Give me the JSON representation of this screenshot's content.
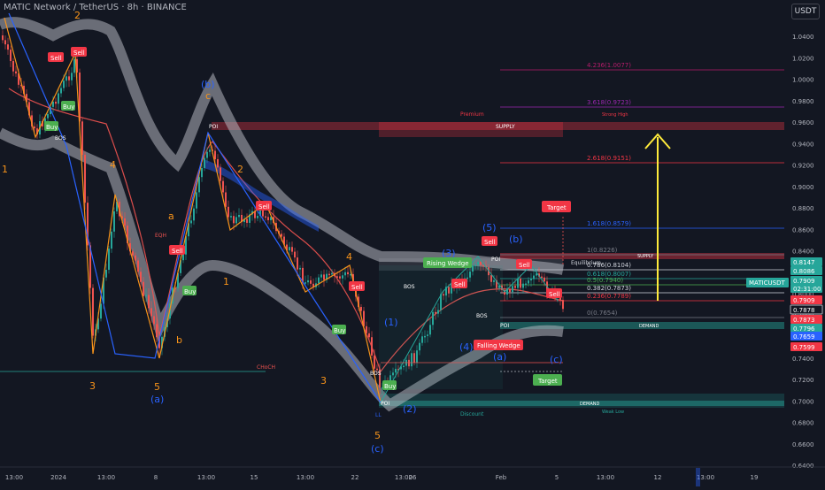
{
  "header": {
    "title": "MATIC Network / TetherUS · 8h · BINANCE",
    "currency_button": "USDT"
  },
  "price_axis": {
    "ticks": [
      "1.0400",
      "1.0200",
      "1.0000",
      "0.9800",
      "0.9600",
      "0.9400",
      "0.9200",
      "0.9000",
      "0.8800",
      "0.8600",
      "0.8400",
      "0.8200",
      "0.8000",
      "0.7800",
      "0.7600",
      "0.7400",
      "0.7200",
      "0.7000",
      "0.6800",
      "0.6600",
      "0.6400"
    ],
    "badges": [
      {
        "label": "0.8147",
        "color": "#26a69a"
      },
      {
        "label": "0.8086",
        "color": "#26a69a"
      },
      {
        "label": "0.7909",
        "color": "#26a69a"
      },
      {
        "label": "02:31:00",
        "color": "#26a69a"
      },
      {
        "label": "0.7909",
        "color": "#f23645"
      },
      {
        "label": "0.7878",
        "color": "#131722"
      },
      {
        "label": "0.7873",
        "color": "#f23645"
      },
      {
        "label": "0.7796",
        "color": "#26a69a"
      },
      {
        "label": "0.7659",
        "color": "#2962ff"
      },
      {
        "label": "0.7599",
        "color": "#f23645"
      }
    ],
    "symbol_label": "MATICUSDT"
  },
  "time_axis": [
    "13:00",
    "2024",
    "13:00",
    "8",
    "13:00",
    "15",
    "13:00",
    "22",
    "13:00",
    "26",
    "Feb",
    "5",
    "13:00",
    "12",
    "13:00",
    "19"
  ],
  "fib_levels": [
    {
      "label": "4.236(1.0077)",
      "color": "#b71c6b"
    },
    {
      "label": "3.618(0.9723)",
      "color": "#9c27b0"
    },
    {
      "label": "2.618(0.9151)",
      "color": "#f23645"
    },
    {
      "label": "1.618(0.8579)",
      "color": "#2962ff"
    },
    {
      "label": "1(0.8226)",
      "color": "#787b86"
    },
    {
      "label": "0.786(0.8104)",
      "color": "#d1d4dc"
    },
    {
      "label": "0.618(0.8007)",
      "color": "#26a69a"
    },
    {
      "label": "0.5(0.7940)",
      "color": "#4caf50"
    },
    {
      "label": "0.382(0.7873)",
      "color": "#d1d4dc"
    },
    {
      "label": "0.236(0.7789)",
      "color": "#f23645"
    },
    {
      "label": "0(0.7654)",
      "color": "#787b86"
    }
  ],
  "zones": {
    "premium": "Premium",
    "supply_top": "SUPPLY",
    "strong_high": "Strong High",
    "supply_mid": "SUPPLY",
    "equilibrium": "Equilibrium",
    "demand_mid": "DEMAND",
    "demand_low": "DEMAND",
    "discount": "Discount",
    "weak_low": "Weak Low",
    "choch": "CHoCH",
    "eqh": "EQH"
  },
  "signals": {
    "buy": "Buy",
    "sell": "Sell",
    "target": "Target",
    "rising_wedge": "Rising Wedge",
    "falling_wedge": "Falling Wedge"
  },
  "waves": {
    "w2_top": "2",
    "w1_left": "1",
    "w3_left": "3",
    "w4_left": "4",
    "w5_left": "5",
    "wa_left": "(a)",
    "wb": "(b)",
    "wc_small": "c",
    "w2_mid": "2",
    "w1_mid": "1",
    "wa_small": "a",
    "wb_small": "b",
    "w3_mid": "3",
    "w4_mid": "4",
    "w5_mid": "5",
    "wc_mid": "(c)",
    "w1_paren": "(1)",
    "w2_paren": "(2)",
    "w3_paren": "(3)",
    "w4_paren": "(4)",
    "w5_paren": "(5)",
    "wb_right": "(b)",
    "wa_right": "(a)",
    "wc_right": "(c)"
  },
  "markers": {
    "poi": "POI",
    "bos": "BOS",
    "ll": "LL"
  },
  "colors": {
    "bg": "#131722",
    "up": "#26a69a",
    "down": "#ef5350",
    "wave": "#f7931a",
    "wave_blue": "#2962ff",
    "arrow": "#ffeb3b",
    "band": "#b2b5be"
  }
}
